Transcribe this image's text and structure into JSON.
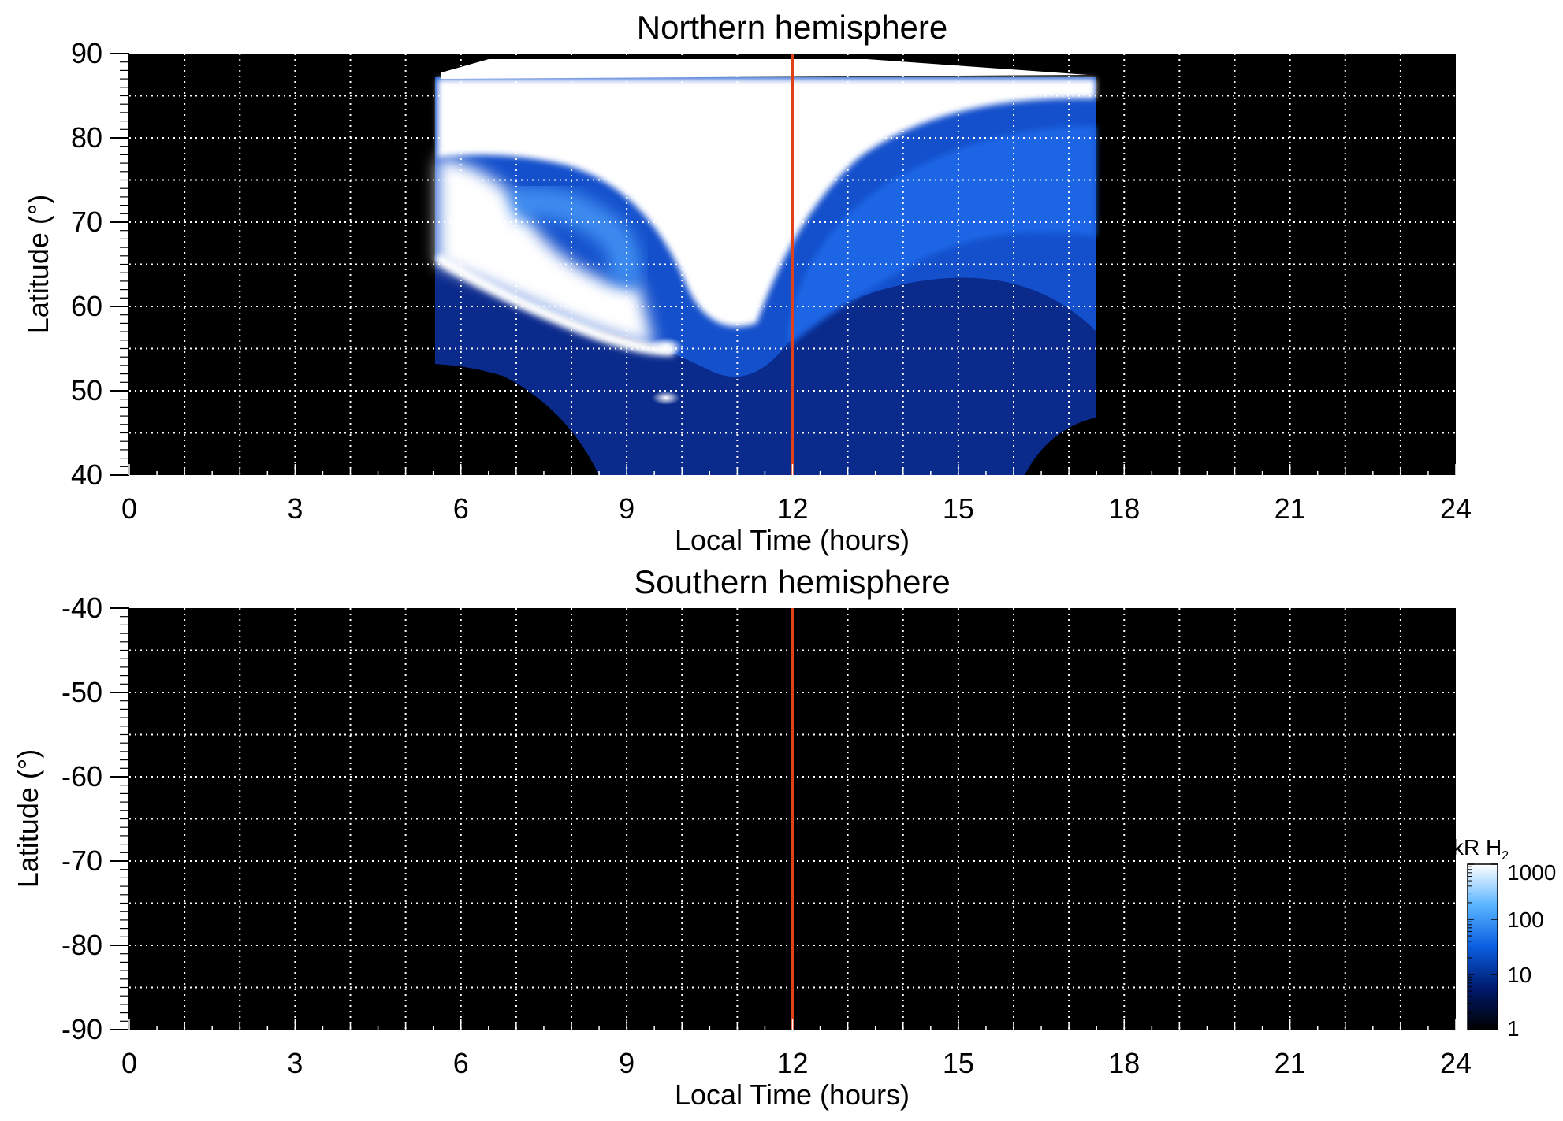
{
  "colors": {
    "background": "#000000",
    "grid": "#ffffff",
    "noon_line": "#e0401a"
  },
  "chart_data": [
    {
      "type": "heatmap",
      "title": "Northern hemisphere",
      "xlabel": "Local Time (hours)",
      "ylabel": "Latitude (°)",
      "xlim": [
        0,
        24
      ],
      "ylim": [
        40,
        90
      ],
      "x_ticks": [
        "0",
        "3",
        "6",
        "9",
        "12",
        "15",
        "18",
        "21",
        "24"
      ],
      "y_ticks": [
        "40",
        "50",
        "60",
        "70",
        "80",
        "90"
      ],
      "y_tick_values": [
        40,
        50,
        60,
        70,
        80,
        90
      ],
      "grid": true,
      "reference_line_x": 12,
      "coverage": {
        "lt_start": 5.5,
        "lt_end": 17.3
      },
      "features": {
        "bright_region": "dayside auroral emission, bright (>1000 kR) near 6-12 LT poleward of ~62°",
        "oval_arc": [
          [
            5.8,
            64
          ],
          [
            7.0,
            60
          ],
          [
            8.0,
            57
          ],
          [
            9.0,
            55
          ],
          [
            9.7,
            54.5
          ]
        ]
      }
    },
    {
      "type": "heatmap",
      "title": "Southern hemisphere",
      "xlabel": "Local Time (hours)",
      "ylabel": "Latitude (°)",
      "xlim": [
        0,
        24
      ],
      "ylim": [
        -90,
        -40
      ],
      "x_ticks": [
        "0",
        "3",
        "6",
        "9",
        "12",
        "15",
        "18",
        "21",
        "24"
      ],
      "y_ticks": [
        "-40",
        "-50",
        "-60",
        "-70",
        "-80",
        "-90"
      ],
      "y_tick_values": [
        -40,
        -50,
        -60,
        -70,
        -80,
        -90
      ],
      "grid": true,
      "reference_line_x": 12,
      "coverage": null
    }
  ],
  "colorbar": {
    "unit_label": "kR H",
    "unit_subscript": "2",
    "scale": "log",
    "range": [
      1,
      1000
    ],
    "ticks": [
      "1000",
      "100",
      "10",
      "1"
    ],
    "tick_values": [
      1000,
      100,
      10,
      1
    ]
  }
}
